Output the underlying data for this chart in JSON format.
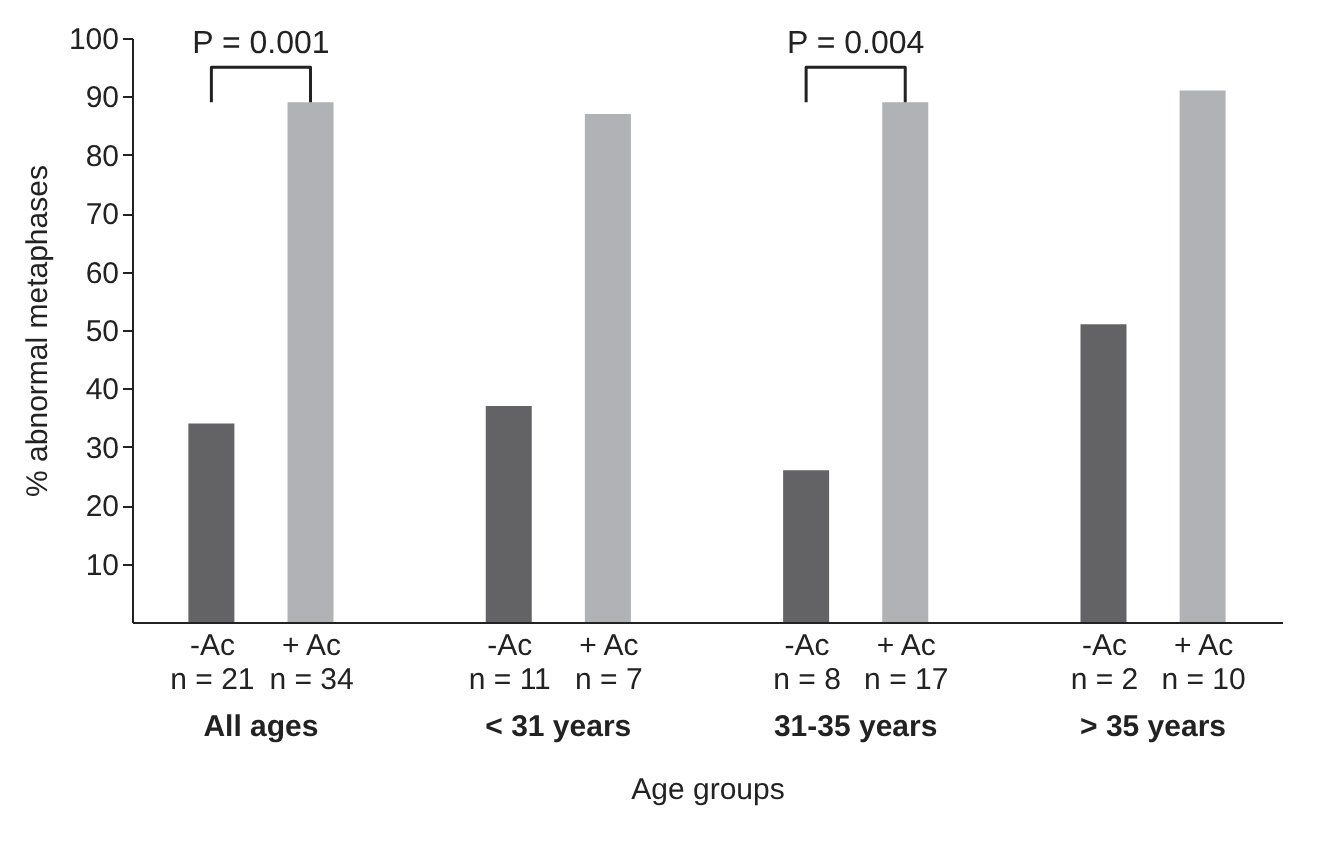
{
  "chart_data": {
    "type": "bar",
    "xlabel": "Age groups",
    "ylabel": "% abnormal metaphases",
    "categories": [
      "-Ac\nn = 21",
      "+ Ac\nn = 34",
      "-Ac\nn = 11",
      "+ Ac\nn = 7",
      "-Ac\nn = 8",
      "+ Ac\nn = 17",
      "-Ac\nn = 2",
      "+ Ac\nn = 10"
    ],
    "values": [
      34,
      89,
      37,
      87,
      26,
      89,
      51,
      91
    ],
    "colors": [
      "#636365",
      "#b1b2b6",
      "#636365",
      "#b1b2b6",
      "#636365",
      "#b1b2b6",
      "#636365",
      "#b1b2b6"
    ],
    "ylim": [
      0,
      100
    ],
    "yticks": [
      10,
      20,
      30,
      40,
      50,
      60,
      70,
      80,
      90,
      100
    ],
    "grid": false,
    "annotations": [
      "P = 0.001",
      "P = 0.004",
      "All ages",
      "< 31 years",
      "31-35 years",
      "> 35 years"
    ]
  }
}
